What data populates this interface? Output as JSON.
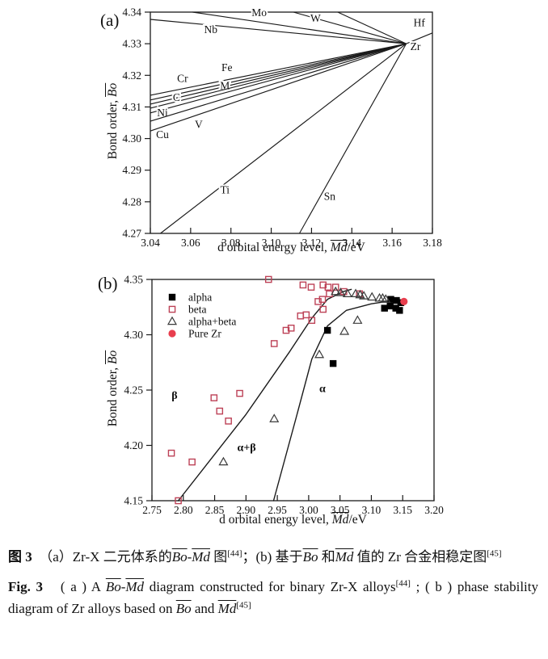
{
  "axis_label_segments": {
    "x": [
      {
        "t": "d orbital energy level, "
      },
      {
        "t": "Md",
        "ov": 1
      },
      {
        "t": "/eV"
      }
    ],
    "y": [
      {
        "t": "Bond order, "
      },
      {
        "t": "Bo",
        "ov": 1
      }
    ]
  },
  "captions": {
    "chinese": [
      {
        "t": "图 3",
        "b": 1
      },
      {
        "t": "　（a）Zr-X 二元体系的"
      },
      {
        "t": "Bo",
        "ov": 1
      },
      {
        "t": "-"
      },
      {
        "t": "Md",
        "ov": 1
      },
      {
        "t": " 图"
      },
      {
        "t": "[44]",
        "sup": 1
      },
      {
        "t": "；(b) 基于"
      },
      {
        "t": "Bo",
        "ov": 1
      },
      {
        "t": " 和"
      },
      {
        "t": "Md",
        "ov": 1
      },
      {
        "t": " 值的 Zr 合金相稳定图"
      },
      {
        "t": "[45]",
        "sup": 1
      }
    ],
    "english": [
      {
        "t": "Fig. 3",
        "b": 1
      },
      {
        "t": "　( a ) A "
      },
      {
        "t": "Bo",
        "ov": 1
      },
      {
        "t": "-"
      },
      {
        "t": "Md",
        "ov": 1
      },
      {
        "t": " diagram constructed for binary Zr-X alloys"
      },
      {
        "t": "[44]",
        "sup": 1
      },
      {
        "t": " ; ( b ) phase stability diagram of Zr alloys based on "
      },
      {
        "t": "Bo",
        "ov": 1
      },
      {
        "t": " and "
      },
      {
        "t": "Md",
        "ov": 1
      },
      {
        "t": "[45]",
        "sup": 1
      }
    ]
  },
  "colors": {
    "axis": "#1a1a1a",
    "line": "#1a1a1a",
    "alpha": "#000000",
    "beta": "#bd4257",
    "alpha_beta": "#3a3a3a",
    "pure_zr": "#e83e4e"
  },
  "chart_data": [
    {
      "type": "line",
      "panel_label": "(a)",
      "xlabel": "d orbital energy level, Md/eV",
      "ylabel": "Bond order, Bo",
      "xlim": [
        3.04,
        3.18
      ],
      "ylim": [
        4.27,
        4.34
      ],
      "xticks": [
        3.04,
        3.06,
        3.08,
        3.1,
        3.12,
        3.14,
        3.16,
        3.18
      ],
      "yticks": [
        4.27,
        4.28,
        4.29,
        4.3,
        4.31,
        4.32,
        4.33,
        4.34
      ],
      "grid": false,
      "origin": {
        "x": 3.167,
        "y": 4.33,
        "label": "Zr",
        "label_at": [
          3.169,
          4.328
        ]
      },
      "lines": [
        {
          "element": "Hf",
          "end": [
            3.18,
            4.3334
          ],
          "label_at": [
            3.1735,
            4.3355
          ]
        },
        {
          "element": "Mo",
          "end": [
            3.061,
            4.34
          ],
          "label_at": [
            3.094,
            4.3387
          ]
        },
        {
          "element": "W",
          "end": [
            3.111,
            4.34
          ],
          "label_at": [
            3.122,
            4.3369
          ]
        },
        {
          "element": "",
          "end": [
            3.133,
            4.34
          ],
          "label_at": null
        },
        {
          "element": "Nb",
          "end": [
            3.04,
            4.3377
          ],
          "label_at": [
            3.07,
            4.3333
          ]
        },
        {
          "element": "Fe",
          "end": [
            3.04,
            4.3137
          ],
          "label_at": [
            3.078,
            4.3214
          ]
        },
        {
          "element": "Cr",
          "end": [
            3.04,
            4.3122
          ],
          "label_at": [
            3.056,
            4.3179
          ]
        },
        {
          "element": "M",
          "end": [
            3.04,
            4.3109
          ],
          "label_at": [
            3.077,
            4.3156
          ]
        },
        {
          "element": "C",
          "end": [
            3.04,
            4.3096
          ],
          "label_at": [
            3.053,
            4.3119
          ]
        },
        {
          "element": "Ni",
          "end": [
            3.04,
            4.3081
          ],
          "label_at": [
            3.046,
            4.3071
          ]
        },
        {
          "element": "V",
          "end": [
            3.04,
            4.3055
          ],
          "label_at": [
            3.064,
            4.3034
          ]
        },
        {
          "element": "Cu",
          "end": [
            3.04,
            4.3024
          ],
          "label_at": [
            3.046,
            4.3002
          ]
        },
        {
          "element": "Ti",
          "end": [
            3.045,
            4.27
          ],
          "label_at": [
            3.077,
            4.2826
          ]
        },
        {
          "element": "Sn",
          "end": [
            3.114,
            4.27
          ],
          "label_at": [
            3.129,
            4.2806
          ]
        }
      ]
    },
    {
      "type": "scatter",
      "panel_label": "(b)",
      "xlabel": "d orbital energy level, Md/eV",
      "ylabel": "Bond order, Bo",
      "xlim": [
        2.75,
        3.2
      ],
      "ylim": [
        4.15,
        4.35
      ],
      "xticks": [
        2.75,
        2.8,
        2.85,
        2.9,
        2.95,
        3.0,
        3.05,
        3.1,
        3.15,
        3.2
      ],
      "yticks": [
        4.15,
        4.2,
        4.25,
        4.3,
        4.35
      ],
      "grid": false,
      "legend_position": "upper-left",
      "series": [
        {
          "name": "alpha",
          "marker": "square_filled",
          "color": "#000000",
          "points": [
            [
              3.03,
              4.304
            ],
            [
              3.039,
              4.274
            ],
            [
              3.121,
              4.324
            ],
            [
              3.131,
              4.332
            ],
            [
              3.14,
              4.331
            ],
            [
              3.147,
              4.329
            ],
            [
              3.13,
              4.326
            ],
            [
              3.139,
              4.324
            ],
            [
              3.145,
              4.322
            ]
          ]
        },
        {
          "name": "beta",
          "marker": "square_open",
          "color": "#bd4257",
          "points": [
            [
              2.792,
              4.15
            ],
            [
              2.781,
              4.193
            ],
            [
              2.814,
              4.185
            ],
            [
              2.849,
              4.243
            ],
            [
              2.858,
              4.231
            ],
            [
              2.872,
              4.222
            ],
            [
              2.89,
              4.247
            ],
            [
              2.936,
              4.35
            ],
            [
              2.945,
              4.292
            ],
            [
              2.964,
              4.304
            ],
            [
              2.972,
              4.306
            ],
            [
              2.987,
              4.317
            ],
            [
              2.996,
              4.318
            ],
            [
              3.005,
              4.313
            ],
            [
              3.015,
              4.33
            ],
            [
              3.022,
              4.332
            ],
            [
              3.023,
              4.323
            ],
            [
              2.991,
              4.345
            ],
            [
              3.004,
              4.343
            ],
            [
              3.023,
              4.345
            ],
            [
              3.031,
              4.343
            ],
            [
              3.033,
              4.337
            ],
            [
              3.043,
              4.343
            ],
            [
              3.056,
              4.339
            ],
            [
              3.081,
              4.337
            ]
          ]
        },
        {
          "name": "alpha+beta",
          "marker": "triangle_open",
          "color": "#3a3a3a",
          "points": [
            [
              2.864,
              4.185
            ],
            [
              2.945,
              4.224
            ],
            [
              3.017,
              4.282
            ],
            [
              3.057,
              4.303
            ],
            [
              3.078,
              4.313
            ],
            [
              3.043,
              4.339
            ],
            [
              3.051,
              4.338
            ],
            [
              3.062,
              4.337
            ],
            [
              3.075,
              4.337
            ],
            [
              3.082,
              4.336
            ],
            [
              3.088,
              4.335
            ],
            [
              3.101,
              4.334
            ],
            [
              3.113,
              4.333
            ],
            [
              3.118,
              4.333
            ],
            [
              3.123,
              4.332
            ]
          ]
        },
        {
          "name": "Pure Zr",
          "marker": "circle_filled",
          "color": "#e83e4e",
          "points": [
            [
              3.152,
              4.33
            ]
          ]
        }
      ],
      "boundaries": [
        {
          "points": [
            [
              2.792,
              4.15
            ],
            [
              2.9,
              4.228
            ],
            [
              2.97,
              4.285
            ],
            [
              3.005,
              4.315
            ],
            [
              3.03,
              4.332
            ],
            [
              3.055,
              4.339
            ],
            [
              3.068,
              4.341
            ]
          ]
        },
        {
          "points": [
            [
              2.944,
              4.15
            ],
            [
              2.98,
              4.225
            ],
            [
              3.005,
              4.278
            ],
            [
              3.03,
              4.308
            ],
            [
              3.06,
              4.322
            ],
            [
              3.1,
              4.328
            ],
            [
              3.135,
              4.331
            ]
          ]
        }
      ],
      "region_labels": [
        {
          "text": "β",
          "x": 2.786,
          "y": 4.242
        },
        {
          "text": "α+β",
          "x": 2.901,
          "y": 4.195
        },
        {
          "text": "α",
          "x": 3.022,
          "y": 4.248
        }
      ]
    }
  ]
}
